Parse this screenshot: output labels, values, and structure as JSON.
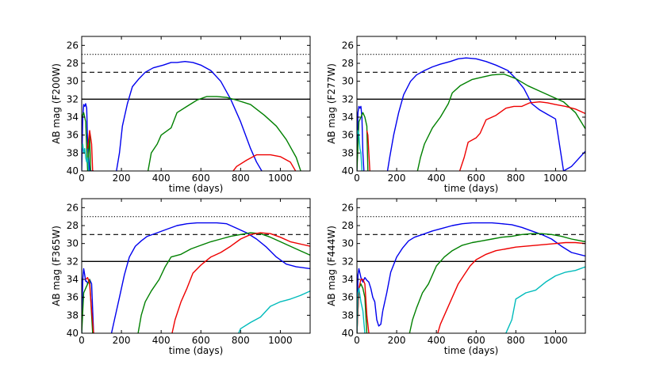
{
  "chart_data": [
    {
      "type": "line",
      "xlabel": "time (days)",
      "ylabel": "AB mag (F200W)",
      "xlim": [
        0,
        1150
      ],
      "ylim": [
        40,
        25
      ],
      "xticks": [
        0,
        200,
        400,
        600,
        800,
        1000
      ],
      "yticks": [
        26,
        28,
        30,
        32,
        34,
        36,
        38,
        40
      ],
      "hlines": [
        {
          "y": 27,
          "style": "dotted",
          "color": "#000000"
        },
        {
          "y": 29,
          "style": "dashed",
          "color": "#000000"
        },
        {
          "y": 32,
          "style": "solid",
          "color": "#000000"
        }
      ],
      "series": [
        {
          "name": "blue",
          "color": "#0000ee",
          "x": [
            0,
            5,
            10,
            15,
            20,
            25,
            30,
            40,
            50,
            60
          ],
          "y": [
            40,
            34,
            32.6,
            32.8,
            32.5,
            33,
            37,
            40,
            40,
            40
          ]
        },
        {
          "name": "blue-main",
          "color": "#0000ee",
          "x": [
            175,
            190,
            205,
            230,
            255,
            285,
            320,
            360,
            410,
            450,
            480,
            520,
            560,
            600,
            650,
            700,
            750,
            800,
            850,
            880,
            920
          ],
          "y": [
            40,
            38,
            35,
            32.5,
            30.6,
            29.8,
            29,
            28.5,
            28.2,
            27.9,
            27.9,
            27.8,
            27.9,
            28.2,
            28.8,
            30,
            32,
            34.5,
            37.5,
            39,
            40.5
          ]
        },
        {
          "name": "green",
          "color": "#008000",
          "x": [
            0,
            10,
            20,
            30,
            40,
            45
          ],
          "y": [
            34,
            33.5,
            34.5,
            40,
            36,
            40
          ]
        },
        {
          "name": "green-main",
          "color": "#008000",
          "x": [
            330,
            350,
            380,
            400,
            450,
            480,
            530,
            580,
            630,
            680,
            730,
            780,
            850,
            920,
            980,
            1030,
            1080,
            1110
          ],
          "y": [
            40.5,
            38,
            37,
            36,
            35.2,
            33.5,
            32.8,
            32.1,
            31.7,
            31.7,
            31.8,
            32.1,
            32.6,
            33.8,
            35,
            36.5,
            38.5,
            40.5
          ]
        },
        {
          "name": "red",
          "color": "#ee0000",
          "x": [
            30,
            40,
            50,
            55,
            60
          ],
          "y": [
            37.5,
            35.5,
            37,
            40,
            40
          ]
        },
        {
          "name": "red-main",
          "color": "#ee0000",
          "x": [
            745,
            780,
            830,
            880,
            950,
            1000,
            1050,
            1090
          ],
          "y": [
            40.5,
            39.5,
            38.8,
            38.2,
            38.2,
            38.4,
            39,
            40.5
          ]
        },
        {
          "name": "cyan",
          "color": "#00bbbb",
          "x": [
            0,
            5,
            10,
            15,
            20,
            25,
            30,
            35,
            40
          ],
          "y": [
            37.5,
            37,
            38,
            37.5,
            38.5,
            39,
            38.5,
            40,
            40
          ]
        }
      ]
    },
    {
      "type": "line",
      "xlabel": "time (days)",
      "ylabel": "AB mag (F277W)",
      "xlim": [
        0,
        1150
      ],
      "ylim": [
        40,
        25
      ],
      "xticks": [
        0,
        200,
        400,
        600,
        800,
        1000
      ],
      "yticks": [
        26,
        28,
        30,
        32,
        34,
        36,
        38,
        40
      ],
      "hlines": [
        {
          "y": 27,
          "style": "dotted",
          "color": "#000000"
        },
        {
          "y": 29,
          "style": "dashed",
          "color": "#000000"
        },
        {
          "y": 32,
          "style": "solid",
          "color": "#000000"
        }
      ],
      "series": [
        {
          "name": "blue",
          "color": "#0000ee",
          "x": [
            0,
            5,
            10,
            15,
            20,
            25,
            30,
            35
          ],
          "y": [
            40,
            33.5,
            32.8,
            33,
            32.8,
            34,
            38,
            40
          ]
        },
        {
          "name": "blue-main",
          "color": "#0000ee",
          "x": [
            150,
            165,
            185,
            210,
            235,
            270,
            300,
            340,
            380,
            420,
            470,
            510,
            550,
            600,
            650,
            700,
            760,
            800,
            840,
            880,
            920,
            960,
            1000,
            1040,
            1080,
            1150
          ],
          "y": [
            40.5,
            38.5,
            36,
            33.5,
            31.5,
            30,
            29.3,
            28.8,
            28.4,
            28.1,
            27.8,
            27.5,
            27.4,
            27.5,
            27.8,
            28.2,
            28.8,
            29.7,
            30.8,
            32.5,
            33.2,
            33.7,
            34.2,
            40,
            39.5,
            37.8
          ]
        },
        {
          "name": "green",
          "color": "#008000",
          "x": [
            0,
            10,
            20,
            30,
            40,
            50,
            55
          ],
          "y": [
            40,
            34.5,
            34,
            33.5,
            34,
            35,
            40
          ]
        },
        {
          "name": "green-main",
          "color": "#008000",
          "x": [
            300,
            320,
            340,
            380,
            420,
            460,
            480,
            520,
            580,
            620,
            680,
            740,
            800,
            860,
            920,
            980,
            1040,
            1100,
            1150
          ],
          "y": [
            40.5,
            38.5,
            37,
            35.2,
            34,
            32.5,
            31.3,
            30.5,
            29.8,
            29.6,
            29.3,
            29.2,
            29.7,
            30.5,
            31.1,
            31.7,
            32.3,
            33.5,
            35.3
          ]
        },
        {
          "name": "red",
          "color": "#ee0000",
          "x": [
            50,
            55,
            60,
            65
          ],
          "y": [
            35.5,
            36,
            38,
            40
          ]
        },
        {
          "name": "red-main",
          "color": "#ee0000",
          "x": [
            510,
            540,
            560,
            600,
            620,
            650,
            700,
            750,
            790,
            830,
            870,
            920,
            960,
            1000,
            1050,
            1100,
            1150
          ],
          "y": [
            40.5,
            38.5,
            36.8,
            36.3,
            35.8,
            34.3,
            33.8,
            33,
            32.8,
            32.8,
            32.4,
            32.3,
            32.4,
            32.6,
            32.8,
            33.1,
            33.6
          ]
        },
        {
          "name": "cyan",
          "color": "#00bbbb",
          "x": [
            0,
            5,
            10,
            15,
            20,
            25,
            30
          ],
          "y": [
            36,
            35.5,
            36,
            37.5,
            38,
            40,
            40
          ]
        }
      ]
    },
    {
      "type": "line",
      "xlabel": "time (days)",
      "ylabel": "AB mag (F365W)",
      "xlim": [
        0,
        1150
      ],
      "ylim": [
        40,
        25
      ],
      "xticks": [
        0,
        200,
        400,
        600,
        800,
        1000
      ],
      "yticks": [
        26,
        28,
        30,
        32,
        34,
        36,
        38,
        40
      ],
      "hlines": [
        {
          "y": 27,
          "style": "dotted",
          "color": "#000000"
        },
        {
          "y": 29,
          "style": "dashed",
          "color": "#000000"
        },
        {
          "y": 32,
          "style": "solid",
          "color": "#000000"
        }
      ],
      "series": [
        {
          "name": "blue",
          "color": "#0000ee",
          "x": [
            0,
            5,
            10,
            15,
            20,
            25,
            30,
            40,
            50,
            60
          ],
          "y": [
            40,
            34,
            32.8,
            33.5,
            34.2,
            34.2,
            34.5,
            34,
            34.5,
            40
          ]
        },
        {
          "name": "blue-main",
          "color": "#0000ee",
          "x": [
            145,
            165,
            190,
            215,
            240,
            270,
            300,
            330,
            380,
            430,
            480,
            530,
            580,
            630,
            680,
            730,
            780,
            830,
            880,
            930,
            980,
            1030,
            1080,
            1150
          ],
          "y": [
            40.5,
            38.5,
            36,
            33.5,
            31.5,
            30.3,
            29.7,
            29.2,
            28.8,
            28.4,
            28.0,
            27.8,
            27.7,
            27.7,
            27.7,
            27.8,
            28.3,
            28.8,
            29.5,
            30.4,
            31.5,
            32.3,
            32.6,
            32.8
          ]
        },
        {
          "name": "green",
          "color": "#008000",
          "x": [
            0,
            10,
            20,
            30,
            40,
            50,
            55
          ],
          "y": [
            40,
            35.5,
            35,
            34.5,
            34,
            38,
            40
          ]
        },
        {
          "name": "green-main",
          "color": "#008000",
          "x": [
            280,
            300,
            320,
            350,
            390,
            420,
            450,
            500,
            550,
            600,
            650,
            700,
            750,
            800,
            850,
            900,
            950,
            1000,
            1050,
            1150
          ],
          "y": [
            40.5,
            38,
            36.5,
            35.3,
            34,
            32.6,
            31.5,
            31.2,
            30.6,
            30.2,
            29.8,
            29.5,
            29.2,
            29,
            28.8,
            28.9,
            29.3,
            29.8,
            30.3,
            31.3
          ]
        },
        {
          "name": "red",
          "color": "#ee0000",
          "x": [
            20,
            30,
            40,
            50,
            60
          ],
          "y": [
            34,
            33.8,
            34.5,
            37.5,
            40
          ]
        },
        {
          "name": "red-main",
          "color": "#ee0000",
          "x": [
            450,
            470,
            500,
            530,
            560,
            600,
            650,
            700,
            750,
            800,
            850,
            900,
            950,
            1000,
            1050,
            1150
          ],
          "y": [
            40.5,
            38.5,
            36.5,
            35,
            33.3,
            32.4,
            31.5,
            31,
            30.3,
            29.5,
            29,
            28.8,
            28.9,
            29.3,
            29.8,
            30.3
          ]
        },
        {
          "name": "cyan",
          "color": "#00bbbb",
          "x": [
            780,
            800,
            850,
            900,
            950,
            1000,
            1050,
            1100,
            1150
          ],
          "y": [
            40.5,
            39.5,
            38.8,
            38.2,
            37,
            36.5,
            36.2,
            35.8,
            35.3
          ]
        }
      ]
    },
    {
      "type": "line",
      "xlabel": "time (days)",
      "ylabel": "AB mag (F444W)",
      "xlim": [
        0,
        1150
      ],
      "ylim": [
        40,
        25
      ],
      "xticks": [
        0,
        200,
        400,
        600,
        800,
        1000
      ],
      "yticks": [
        26,
        28,
        30,
        32,
        34,
        36,
        38,
        40
      ],
      "hlines": [
        {
          "y": 27,
          "style": "dotted",
          "color": "#000000"
        },
        {
          "y": 29,
          "style": "dashed",
          "color": "#000000"
        },
        {
          "y": 32,
          "style": "solid",
          "color": "#000000"
        }
      ],
      "series": [
        {
          "name": "blue",
          "color": "#0000ee",
          "x": [
            0,
            5,
            10,
            20,
            30,
            40,
            50,
            60,
            70,
            80,
            90,
            100,
            110,
            120,
            130
          ],
          "y": [
            40,
            33.5,
            32.8,
            33.8,
            34.3,
            33.8,
            34.1,
            34.3,
            35,
            36,
            36.5,
            38.5,
            39.2,
            39,
            37.5
          ]
        },
        {
          "name": "blue-main",
          "color": "#0000ee",
          "x": [
            130,
            150,
            170,
            200,
            230,
            260,
            290,
            330,
            380,
            430,
            480,
            530,
            580,
            630,
            680,
            730,
            780,
            830,
            880,
            930,
            980,
            1030,
            1080,
            1150
          ],
          "y": [
            37.5,
            35.5,
            33.2,
            31.5,
            30.5,
            29.7,
            29.3,
            29.0,
            28.6,
            28.3,
            28.0,
            27.8,
            27.7,
            27.7,
            27.7,
            27.8,
            27.9,
            28.2,
            28.6,
            29.0,
            29.5,
            30.3,
            31.0,
            31.4
          ]
        },
        {
          "name": "green",
          "color": "#008000",
          "x": [
            0,
            10,
            20,
            30,
            40,
            50
          ],
          "y": [
            40,
            35,
            34.5,
            35,
            36,
            40
          ]
        },
        {
          "name": "green-main",
          "color": "#008000",
          "x": [
            260,
            280,
            300,
            330,
            360,
            400,
            440,
            480,
            530,
            580,
            630,
            680,
            730,
            780,
            830,
            880,
            930,
            980,
            1030,
            1080,
            1150
          ],
          "y": [
            40.5,
            38.5,
            37.2,
            35.5,
            34.5,
            32.5,
            31.5,
            30.8,
            30.2,
            29.9,
            29.7,
            29.5,
            29.3,
            29.2,
            29.0,
            28.9,
            28.9,
            29.0,
            29.2,
            29.5,
            29.8
          ]
        },
        {
          "name": "red",
          "color": "#ee0000",
          "x": [
            0,
            10,
            20,
            30,
            40,
            50,
            60
          ],
          "y": [
            40,
            35,
            34,
            34,
            34.5,
            38,
            40
          ]
        },
        {
          "name": "red-main",
          "color": "#ee0000",
          "x": [
            400,
            420,
            450,
            480,
            510,
            540,
            570,
            600,
            650,
            700,
            750,
            800,
            850,
            900,
            950,
            1000,
            1050,
            1100,
            1150
          ],
          "y": [
            40.5,
            39,
            37.5,
            36,
            34.5,
            33.5,
            32.5,
            31.8,
            31.2,
            30.8,
            30.6,
            30.4,
            30.3,
            30.2,
            30.1,
            30.0,
            29.9,
            29.9,
            30.0
          ]
        },
        {
          "name": "cyan",
          "color": "#00bbbb",
          "x": [
            0,
            5,
            10,
            20,
            30,
            40
          ],
          "y": [
            40,
            35.5,
            35,
            36.5,
            37.5,
            40
          ]
        },
        {
          "name": "cyan-main",
          "color": "#00bbbb",
          "x": [
            740,
            780,
            800,
            850,
            900,
            950,
            1000,
            1050,
            1100,
            1150
          ],
          "y": [
            40.5,
            38.5,
            36.2,
            35.5,
            35.2,
            34.3,
            33.6,
            33.2,
            33.0,
            32.6
          ]
        }
      ]
    }
  ]
}
